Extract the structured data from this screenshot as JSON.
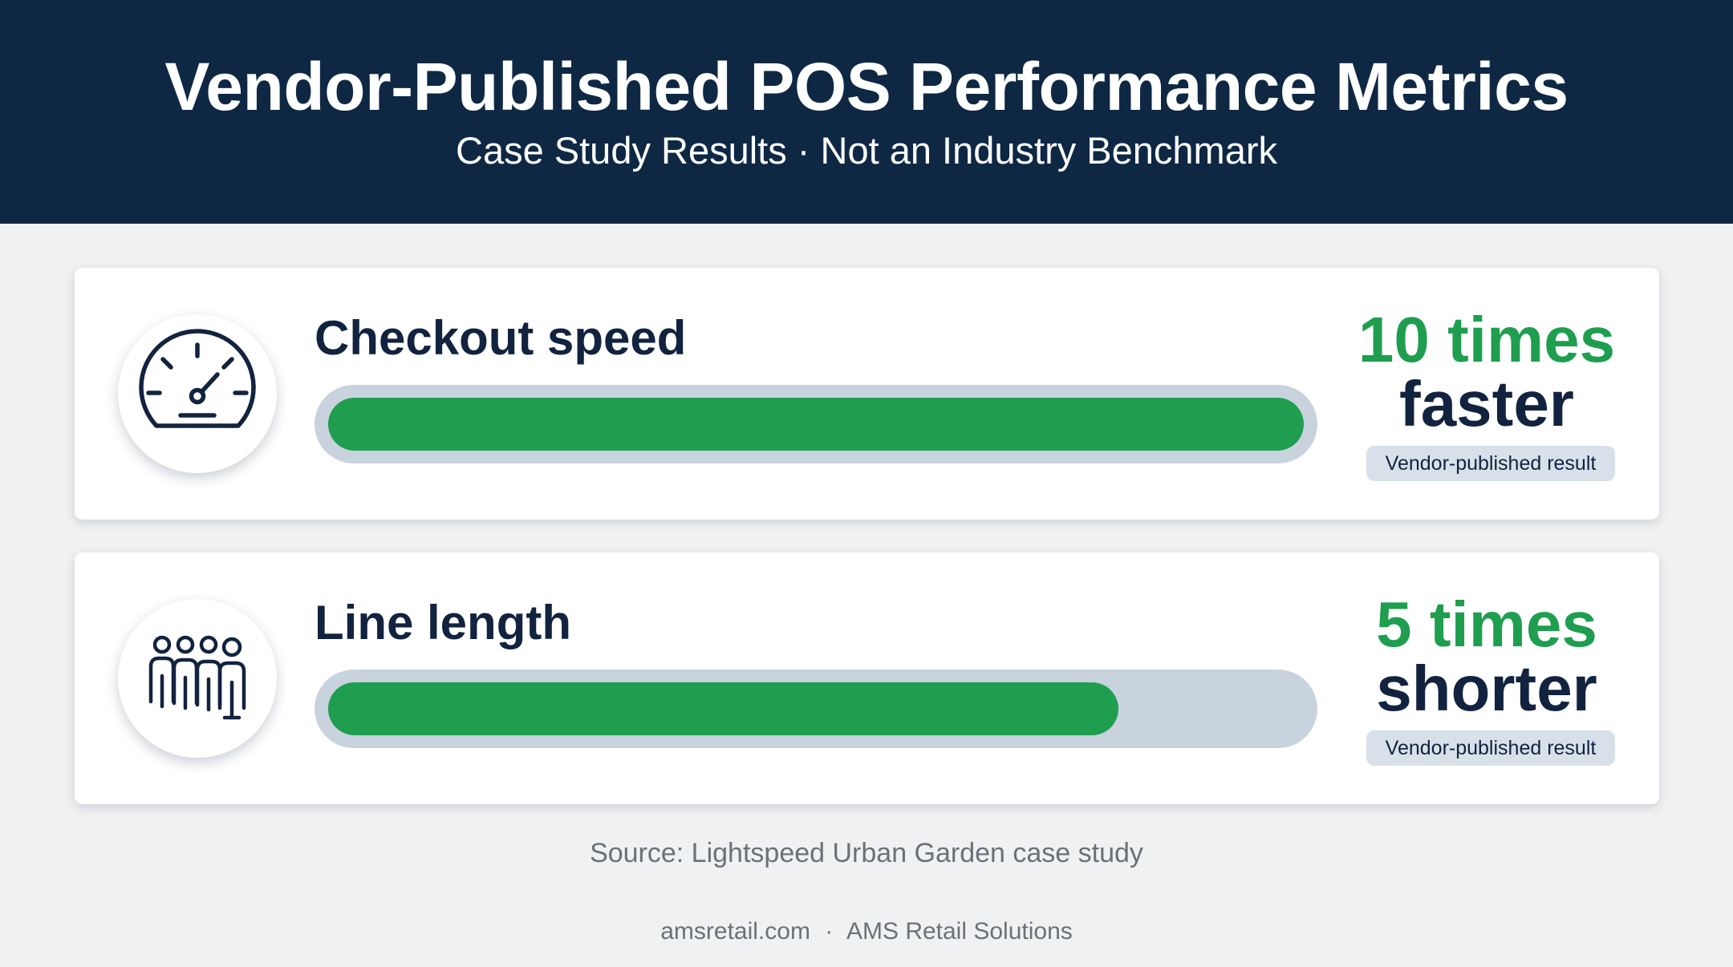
{
  "header": {
    "title": "Vendor-Published POS Performance Metrics",
    "subtitle": "Case Study Results · Not an Industry Benchmark"
  },
  "chart_data": {
    "type": "bar",
    "categories": [
      "Checkout speed",
      "Line length"
    ],
    "values": [
      10,
      5
    ],
    "value_labels": [
      {
        "number": "10 times",
        "descriptor": "faster"
      },
      {
        "number": "5 times",
        "descriptor": "shorter"
      }
    ],
    "bar_fill_fractions": [
      1.0,
      0.81
    ],
    "badges": [
      "Vendor-published result",
      "Vendor-published result"
    ],
    "icons": [
      "speedometer-icon",
      "people-group-icon"
    ],
    "colors": {
      "bar": "#1f9e4f",
      "track": "#c8d3de",
      "value_number": "#1f9e4f",
      "header_bg": "#0e2844"
    }
  },
  "source": "Source: Lightspeed Urban Garden case study",
  "footer": {
    "site": "amsretail.com",
    "separator": "·",
    "company": "AMS Retail Solutions"
  }
}
